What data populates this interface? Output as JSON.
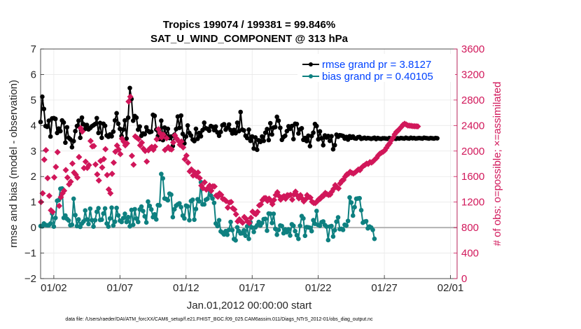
{
  "chart_data": {
    "type": "line",
    "title": "Tropics 199074 / 199381 = 99.846%",
    "subtitle": "SAT_U_WIND_COMPONENT @ 313 hPa",
    "xlabel": "Jan.01,2012 00:00:00 start",
    "ylabel": "rmse and bias (model - observation)",
    "y2label": "# of obs: o=possible; ×=assimilated",
    "footnote": "data file: /Users/raeder/DAI/ATM_forcXX/CAM6_setup/f.e21.FHIST_BGC.f09_025.CAM6assim.011/Diags_NTrS_2012-01/obs_diag_output.nc",
    "xlim": [
      0,
      31.5
    ],
    "ylim": [
      -2,
      7
    ],
    "y2lim": [
      0,
      3600
    ],
    "grid": true,
    "legend_position": "top-right",
    "x_ticks": [
      {
        "value": 1,
        "label": "01/02"
      },
      {
        "value": 6,
        "label": "01/07"
      },
      {
        "value": 11,
        "label": "01/12"
      },
      {
        "value": 16,
        "label": "01/17"
      },
      {
        "value": 21,
        "label": "01/22"
      },
      {
        "value": 26,
        "label": "01/27"
      },
      {
        "value": 31,
        "label": "02/01"
      }
    ],
    "y_ticks": [
      -2,
      -1,
      0,
      1,
      2,
      3,
      4,
      5,
      6,
      7
    ],
    "y2_ticks": [
      0,
      400,
      800,
      1200,
      1600,
      2000,
      2400,
      2800,
      3200,
      3600
    ],
    "zero_line": 0,
    "x_step_days": 0.125,
    "series": [
      {
        "name": "rmse grand pr = 3.8127",
        "axis": "left",
        "color": "#000000",
        "marker": "circle",
        "values": [
          4.14,
          5.13,
          4.65,
          3.98,
          3.95,
          4.19,
          3.57,
          4.28,
          4.29,
          4.26,
          3.71,
          3.88,
          3.78,
          4.2,
          4.12,
          3.33,
          3.93,
          3.52,
          3.46,
          3.15,
          3.39,
          3.78,
          3.98,
          4.19,
          3.52,
          4.31,
          4.05,
          3.87,
          4.02,
          3.85,
          3.9,
          3.97,
          4.01,
          4.06,
          4.29,
          3.71,
          4.1,
          3.52,
          4.07,
          3.99,
          3.61,
          3.56,
          3.65,
          3.58,
          3.76,
          4.2,
          4.48,
          4.07,
          3.87,
          3.59,
          3.84,
          4.2,
          3.49,
          4.31,
          5.47,
          5.04,
          4.19,
          4.37,
          4.31,
          3.84,
          3.96,
          3.6,
          3.69,
          3.66,
          3.93,
          3.79,
          3.74,
          3.76,
          4.42,
          4.38,
          3.84,
          3.59,
          3.47,
          4.19,
          3.43,
          3.92,
          3.6,
          3.87,
          3.51,
          3.57,
          3.2,
          3.64,
          3.86,
          4.35,
          3.91,
          4.39,
          3.67,
          3.3,
          3.57,
          4.0,
          3.71,
          3.61,
          3.45,
          3.39,
          3.87,
          3.48,
          3.71,
          3.58,
          3.82,
          4.11,
          3.89,
          3.87,
          3.8,
          3.98,
          3.95,
          3.82,
          3.96,
          3.73,
          3.6,
          3.75,
          4.01,
          4.05,
          3.84,
          3.92,
          4.04,
          3.82,
          3.69,
          3.83,
          3.7,
          4.11,
          3.78,
          4.53,
          3.84,
          3.81,
          3.6,
          3.51,
          3.84,
          3.4,
          3.57,
          3.1,
          3.53,
          3.05,
          3.42,
          3.36,
          3.57,
          3.4,
          3.72,
          3.86,
          3.43,
          4.09,
          3.65,
          3.92,
          3.94,
          4.34,
          4.19,
          3.91,
          3.44,
          3.55,
          3.6,
          3.78,
          3.97,
          3.87,
          3.98,
          3.47,
          4.07,
          4.06,
          3.69,
          3.85,
          3.89,
          3.44,
          3.51,
          3.39,
          3.6,
          3.19,
          3.59,
          3.72,
          4.06,
          3.98,
          3.46,
          3.77,
          3.5,
          3.23,
          3.61,
          3.53,
          3.59,
          3.4,
          3.58,
          3.07,
          3.23,
          3.64,
          3.56,
          3.62,
          3.61,
          3.59,
          3.49,
          3.55,
          3.45,
          3.58,
          3.52,
          3.57,
          3.5,
          3.49,
          3.54,
          3.55,
          3.48,
          3.5,
          3.52,
          3.49,
          3.51,
          3.5,
          3.48,
          3.5,
          3.52,
          3.47,
          3.51,
          3.49,
          3.48,
          3.5,
          3.5,
          3.49,
          3.48,
          3.51,
          3.49,
          3.5,
          3.49,
          3.48,
          3.5,
          3.49,
          3.51,
          3.5,
          3.49,
          3.52,
          3.5,
          3.49,
          3.52,
          3.5,
          3.51,
          3.49,
          3.5,
          3.51,
          3.5,
          3.49,
          3.52,
          3.51,
          3.5,
          3.49,
          3.51,
          3.5,
          3.49,
          3.51,
          3.5
        ]
      },
      {
        "name": "bias grand pr = 0.40105",
        "axis": "left",
        "color": "#0e8080",
        "marker": "circle",
        "values": [
          0.06,
          0.05,
          0.16,
          0.1,
          0.09,
          0.09,
          0.16,
          0.55,
          0.04,
          0.38,
          1.05,
          1.08,
          1.52,
          1.53,
          0.38,
          0.47,
          0.34,
          0.28,
          0.09,
          0.11,
          1.13,
          0.49,
          0.06,
          0.32,
          0.03,
          0.16,
          0.24,
          0.67,
          0.32,
          0.14,
          0.74,
          0.29,
          0.04,
          0.29,
          0.62,
          0.76,
          0.3,
          0.31,
          0.55,
          0.75,
          0.16,
          0.04,
          0.36,
          0.78,
          0.08,
          0.23,
          0.77,
          0.48,
          0.27,
          0.22,
          0.37,
          0.54,
          0.22,
          0.41,
          0.05,
          0.69,
          0.11,
          0.72,
          0.35,
          0.22,
          0.71,
          0.82,
          0.65,
          0.44,
          0.2,
          1.02,
          0.85,
          0.71,
          0.41,
          0.52,
          0.32,
          0.88,
          0.87,
          2.1,
          1.93,
          1.14,
          1.12,
          1.07,
          1.33,
          1.29,
          0.41,
          0.72,
          0.86,
          0.91,
          0.95,
          0.8,
          0.47,
          0.36,
          0.86,
          0.83,
          0.29,
          1.04,
          1.09,
          0.31,
          0.73,
          1.11,
          1.03,
          1.78,
          0.91,
          0.91,
          1.09,
          1.13,
          1.48,
          1.26,
          1.14,
          0.97,
          0.16,
          0.06,
          0.29,
          -0.15,
          -0.2,
          -0.27,
          -0.14,
          -0.28,
          -0.09,
          0.22,
          -0.1,
          -0.45,
          -0.5,
          0.01,
          -0.14,
          -0.23,
          -0.22,
          -0.11,
          -0.32,
          0.05,
          -0.44,
          0.21,
          0.0,
          -0.17,
          0.01,
          0.09,
          0.22,
          0.08,
          0.18,
          0.33,
          0.34,
          -0.12,
          0.55,
          0.54,
          0.18,
          0.54,
          -0.05,
          -0.28,
          -0.09,
          0.08,
          0.06,
          -0.22,
          -0.07,
          -0.18,
          -0.07,
          -0.31,
          0.13,
          0.07,
          -0.14,
          -0.3,
          -0.44,
          0.07,
          0.45,
          0.36,
          -0.32,
          0.02,
          0.01,
          -0.01,
          -0.14,
          0.29,
          0.15,
          0.65,
          0.1,
          0.07,
          0.21,
          0.24,
          0.1,
          0.04,
          -0.49,
          0.04,
          0.06,
          -0.35,
          -0.1,
          0.23,
          0.4,
          -0.06,
          -0.05,
          -0.09,
          0.11,
          0.08,
          0.26,
          1.18,
          0.98,
          0.47,
          0.8,
          1.13,
          1.14,
          1.15,
          0.68,
          0.19,
          0.23,
          0.25,
          -0.03,
          0.04,
          0.0,
          -0.09,
          -0.44
        ]
      },
      {
        "name": "# of obs possible",
        "axis": "right",
        "color": "#d1175a",
        "marker": "circle-open",
        "values": []
      },
      {
        "name": "# of obs assimilated",
        "axis": "right",
        "color": "#d1175a",
        "marker": "x",
        "values": [
          1201,
          1337,
          1865,
          2014,
          1575,
          1298,
          1071,
          1046,
          1587,
          1751,
          1983,
          1140,
          1276,
          1336,
          1378,
          1702,
          1584,
          1478,
          1520,
          1804,
          1662,
          1631,
          1584,
          1906,
          2359,
          2307,
          1733,
          1833,
          1736,
          1779,
          2158,
          2074,
          2079,
          1790,
          1634,
          1538,
          1844,
          1742,
          1875,
          2029,
          1624,
          1398,
          1337,
          1643,
          1818,
          1990,
          2086,
          2024,
          1952,
          2194,
          2149,
          2090,
          2120,
          2776,
          2852,
          1925,
          1786,
          2229,
          2209,
          2188,
          2089,
          2132,
          2035,
          2002,
          1836,
          2011,
          2044,
          2065,
          2020,
          2069,
          2185,
          2342,
          2281,
          2213,
          2256,
          2017,
          2201,
          2060,
          2031,
          2025,
          2134,
          2246,
          2198,
          2163,
          2099,
          2149,
          2057,
          1872,
          1929,
          1819,
          1681,
          1712,
          1617,
          1667,
          1611,
          1664,
          1576,
          1458,
          1417,
          1510,
          1395,
          1421,
          1459,
          1377,
          1448,
          1445,
          1302,
          1283,
          1336,
          1313,
          1250,
          1240,
          1216,
          1113,
          1191,
          1201,
          1103,
          1084,
          1008,
          897,
          929,
          901,
          875,
          965,
          938,
          894,
          873,
          953,
          1049,
          1023,
          1010,
          1046,
          1148,
          1163,
          1231,
          1262,
          1263,
          1219,
          1254,
          1222,
          1167,
          1233,
          1310,
          1354,
          1296,
          1238,
          1276,
          1292,
          1252,
          1308,
          1302,
          1313,
          1238,
          1318,
          1363,
          1305,
          1259,
          1308,
          1256,
          1211,
          1241,
          1308,
          1280,
          1269,
          1205,
          1186,
          1185,
          1209,
          1244,
          1253,
          1292,
          1298,
          1343,
          1324,
          1312,
          1319,
          1364,
          1406,
          1465,
          1432,
          1414,
          1492,
          1533,
          1547,
          1598,
          1633,
          1644,
          1673,
          1657,
          1647,
          1664,
          1686,
          1711,
          1701,
          1741,
          1765,
          1782,
          1803,
          1799,
          1826,
          1819,
          1840,
          1867,
          1891,
          1930,
          1958,
          1974,
          1989,
          2010,
          2050,
          2090,
          2123,
          2170,
          2210,
          2262,
          2300,
          2319,
          2350,
          2377,
          2411,
          2428,
          2415,
          2400,
          2398,
          2395,
          2390,
          2389,
          2388,
          2386
        ]
      }
    ]
  }
}
